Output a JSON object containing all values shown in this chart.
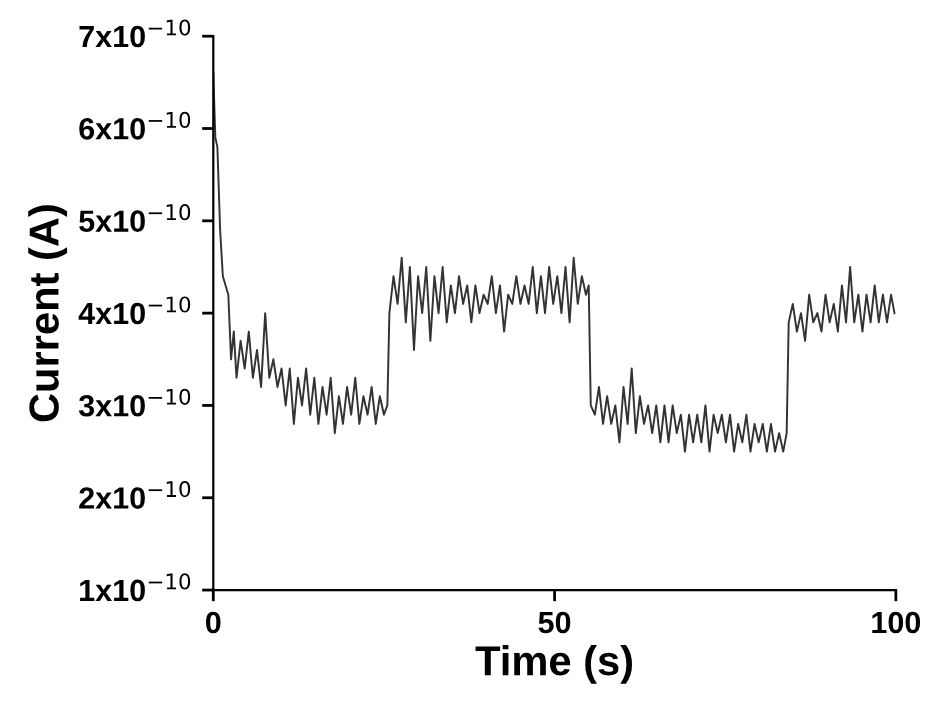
{
  "chart_data": {
    "type": "line",
    "xlabel": "Time (s)",
    "ylabel": "Current (A)",
    "xlim": [
      0,
      100
    ],
    "xticks": [
      0,
      50,
      100
    ],
    "ylim": [
      1e-10,
      7e-10
    ],
    "yticks": [
      {
        "value": 1e-10,
        "label": "1x10$^{−10}$"
      },
      {
        "value": 2e-10,
        "label": "2x10$^{−10}$"
      },
      {
        "value": 3e-10,
        "label": "3x10$^{−10}$"
      },
      {
        "value": 4e-10,
        "label": "4x10$^{−10}$"
      },
      {
        "value": 5e-10,
        "label": "5x10$^{−10}$"
      },
      {
        "value": 6e-10,
        "label": "6x10$^{−10}$"
      },
      {
        "value": 7e-10,
        "label": "7x10$^{−10}$"
      }
    ],
    "grid": false,
    "legend": false,
    "marker": "none",
    "line_style": "solid",
    "series": [
      {
        "color": "#333333",
        "x": [
          0,
          0.3,
          0.6,
          1.0,
          1.4,
          1.8,
          2.2,
          2.6,
          3.0,
          3.4,
          4.0,
          4.6,
          5.2,
          5.8,
          6.4,
          7.0,
          7.6,
          8.2,
          8.8,
          9.4,
          10.0,
          10.6,
          11.2,
          11.8,
          12.4,
          13.0,
          13.6,
          14.2,
          14.8,
          15.4,
          16.0,
          16.6,
          17.2,
          17.8,
          18.4,
          19.0,
          19.6,
          20.2,
          20.8,
          21.4,
          22.0,
          22.6,
          23.2,
          23.8,
          24.4,
          25.0,
          25.5,
          25.8,
          26.4,
          27.0,
          27.6,
          28.2,
          28.8,
          29.4,
          30.0,
          30.6,
          31.2,
          31.8,
          32.4,
          33.0,
          33.6,
          34.2,
          34.8,
          35.4,
          36.0,
          36.6,
          37.2,
          37.8,
          38.4,
          39.0,
          39.6,
          40.2,
          40.8,
          41.4,
          42.0,
          42.6,
          43.2,
          43.8,
          44.4,
          45.0,
          45.6,
          46.2,
          46.8,
          47.4,
          48.0,
          48.6,
          49.2,
          49.8,
          50.4,
          51.0,
          51.6,
          52.2,
          52.8,
          53.4,
          54.0,
          54.6,
          55.0,
          55.3,
          55.9,
          56.5,
          57.1,
          57.7,
          58.3,
          58.9,
          59.5,
          60.1,
          60.7,
          61.3,
          61.9,
          62.5,
          63.1,
          63.7,
          64.3,
          64.9,
          65.5,
          66.1,
          66.7,
          67.3,
          67.9,
          68.5,
          69.1,
          69.7,
          70.3,
          70.9,
          71.5,
          72.1,
          72.7,
          73.3,
          73.9,
          74.5,
          75.1,
          75.7,
          76.3,
          76.9,
          77.5,
          78.1,
          78.7,
          79.3,
          79.9,
          80.5,
          81.1,
          81.7,
          82.3,
          82.9,
          83.5,
          84.0,
          84.3,
          84.9,
          85.5,
          86.1,
          86.7,
          87.3,
          87.9,
          88.5,
          89.1,
          89.7,
          90.3,
          90.9,
          91.5,
          92.1,
          92.7,
          93.3,
          93.9,
          94.5,
          95.1,
          95.7,
          96.3,
          96.9,
          97.5,
          98.1,
          98.7,
          99.3,
          99.8
        ],
        "values": [
          6.6e-10,
          5.9e-10,
          5.8e-10,
          4.9e-10,
          4.4e-10,
          4.3e-10,
          4.2e-10,
          3.5e-10,
          3.8e-10,
          3.3e-10,
          3.7e-10,
          3.4e-10,
          3.8e-10,
          3.3e-10,
          3.6e-10,
          3.2e-10,
          4e-10,
          3.3e-10,
          3.5e-10,
          3.2e-10,
          3.4e-10,
          3e-10,
          3.4e-10,
          2.8e-10,
          3.3e-10,
          3e-10,
          3.4e-10,
          2.9e-10,
          3.3e-10,
          2.8e-10,
          3.2e-10,
          2.9e-10,
          3.3e-10,
          2.7e-10,
          3.1e-10,
          2.8e-10,
          3.2e-10,
          2.9e-10,
          3.3e-10,
          2.8e-10,
          3.1e-10,
          2.9e-10,
          3.2e-10,
          2.8e-10,
          3.1e-10,
          2.9e-10,
          3e-10,
          4e-10,
          4.4e-10,
          4.1e-10,
          4.6e-10,
          3.9e-10,
          4.5e-10,
          3.6e-10,
          4.4e-10,
          4e-10,
          4.5e-10,
          3.7e-10,
          4.4e-10,
          4e-10,
          4.5e-10,
          3.9e-10,
          4.3e-10,
          4e-10,
          4.4e-10,
          4.1e-10,
          4.3e-10,
          3.9e-10,
          4.3e-10,
          4e-10,
          4.2e-10,
          4.1e-10,
          4.4e-10,
          4e-10,
          4.3e-10,
          3.8e-10,
          4.2e-10,
          4.1e-10,
          4.4e-10,
          4.1e-10,
          4.3e-10,
          4.1e-10,
          4.5e-10,
          4e-10,
          4.4e-10,
          4e-10,
          4.5e-10,
          4.1e-10,
          4.4e-10,
          4e-10,
          4.5e-10,
          3.9e-10,
          4.6e-10,
          4.1e-10,
          4.4e-10,
          4.2e-10,
          4.3e-10,
          3e-10,
          2.9e-10,
          3.2e-10,
          2.8e-10,
          3.1e-10,
          2.8e-10,
          3e-10,
          2.6e-10,
          3.2e-10,
          2.8e-10,
          3.4e-10,
          2.7e-10,
          3.1e-10,
          2.8e-10,
          3e-10,
          2.7e-10,
          3e-10,
          2.6e-10,
          3e-10,
          2.6e-10,
          3e-10,
          2.7e-10,
          2.9e-10,
          2.5e-10,
          2.9e-10,
          2.6e-10,
          2.9e-10,
          2.6e-10,
          3e-10,
          2.5e-10,
          2.9e-10,
          2.7e-10,
          2.9e-10,
          2.6e-10,
          2.9e-10,
          2.5e-10,
          2.8e-10,
          2.6e-10,
          2.9e-10,
          2.5e-10,
          2.8e-10,
          2.6e-10,
          2.8e-10,
          2.5e-10,
          2.8e-10,
          2.5e-10,
          2.7e-10,
          2.5e-10,
          2.7e-10,
          3.9e-10,
          4.1e-10,
          3.8e-10,
          4e-10,
          3.7e-10,
          4.2e-10,
          3.9e-10,
          4e-10,
          3.8e-10,
          4.2e-10,
          3.9e-10,
          4.1e-10,
          3.8e-10,
          4.3e-10,
          3.9e-10,
          4.5e-10,
          3.9e-10,
          4.2e-10,
          3.8e-10,
          4.2e-10,
          3.9e-10,
          4.3e-10,
          3.9e-10,
          4.2e-10,
          3.9e-10,
          4.2e-10,
          4e-10
        ]
      }
    ]
  }
}
